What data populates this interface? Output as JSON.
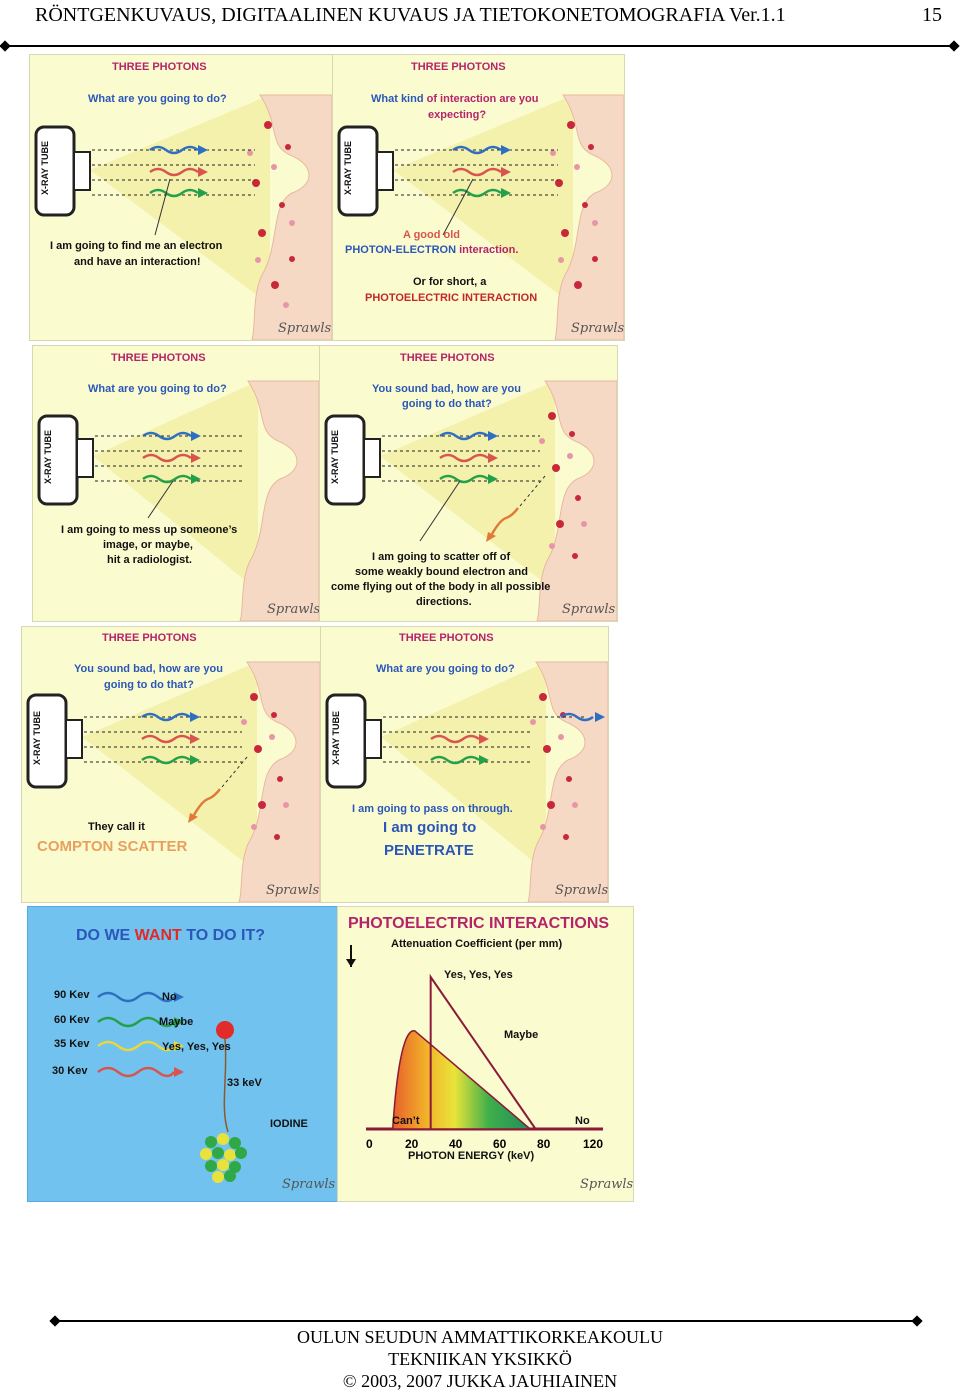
{
  "header": {
    "title": "RÖNTGENKUVAUS, DIGITAALINEN KUVAUS JA TIETOKONETOMOGRAFIA Ver.1.1",
    "page_number": "15"
  },
  "panels": {
    "p1": {
      "heading": "THREE PHOTONS",
      "question": "What are you going to do?",
      "tube": "X-RAY TUBE",
      "answer1": "I am going to find me an electron",
      "answer2": "and have an interaction!",
      "signature": "Sprawls"
    },
    "p2": {
      "heading": "THREE PHOTONS",
      "q1a": "What kind ",
      "q1b": "of interaction are you",
      "q2": "expecting?",
      "tube": "X-RAY TUBE",
      "a1": "A good old",
      "a2a": "PHOTON-ELECTRON",
      "a2b": " interaction.",
      "a3": "Or for short, a",
      "a4": "PHOTOELECTRIC INTERACTION",
      "signature": "Sprawls"
    },
    "p3": {
      "heading": "THREE PHOTONS",
      "question": "What are you going to do?",
      "tube": "X-RAY TUBE",
      "a1": "I am going to mess up someone’s",
      "a2": "image, or maybe,",
      "a3": "hit a radiologist.",
      "signature": "Sprawls"
    },
    "p4": {
      "heading": "THREE PHOTONS",
      "q1": "You sound bad, how are you",
      "q2": "going to do that?",
      "tube": "X-RAY TUBE",
      "a1": "I am going to scatter off of",
      "a2": "some weakly bound electron and",
      "a3": "come flying out of the body in all possible",
      "a4": "directions.",
      "signature": "Sprawls"
    },
    "p5": {
      "heading": "THREE PHOTONS",
      "q1": "You sound bad, how are you",
      "q2": "going to do that?",
      "tube": "X-RAY TUBE",
      "a1": "They call it",
      "a2": "COMPTON SCATTER",
      "signature": "Sprawls"
    },
    "p6": {
      "heading": "THREE PHOTONS",
      "question": "What are you going to do?",
      "tube": "X-RAY TUBE",
      "a1": "I am going to pass on through.",
      "a2": "I am going to",
      "a3": "PENETRATE",
      "signature": "Sprawls"
    },
    "p7": {
      "title_a": "DO WE ",
      "title_b": "WANT",
      "title_c": " TO DO IT?",
      "rows": [
        {
          "energy": "90 Kev",
          "answer": "No",
          "color": "#2f6fc2"
        },
        {
          "energy": "60 Kev",
          "answer": "Maybe",
          "color": "#25a04a"
        },
        {
          "energy": "35 Kev",
          "answer": "Yes, Yes, Yes",
          "color": "#e8d83a"
        },
        {
          "energy": "30 Kev",
          "answer": "",
          "color": "#d9534f"
        }
      ],
      "edge": "33 keV",
      "iodine": "IODINE",
      "signature": "Sprawls"
    }
  },
  "chart_data": {
    "type": "area",
    "title": "PHOTOELECTRIC INTERACTIONS",
    "ylabel": "Attenuation Coefficient (per mm)",
    "xlabel": "PHOTON ENERGY (keV)",
    "x_ticks": [
      "0",
      "20",
      "40",
      "60",
      "80",
      "120"
    ],
    "annotations": [
      "Yes, Yes, Yes",
      "Maybe",
      "Can’t",
      "No"
    ],
    "edge_energy_kev": 33,
    "signature": "Sprawls"
  },
  "footer": {
    "line1": "OULUN SEUDUN AMMATTIKORKEAKOULU",
    "line2": "TEKNIIKAN YKSIKKÖ",
    "line3": "© 2003, 2007 JUKKA JAUHIAINEN"
  }
}
